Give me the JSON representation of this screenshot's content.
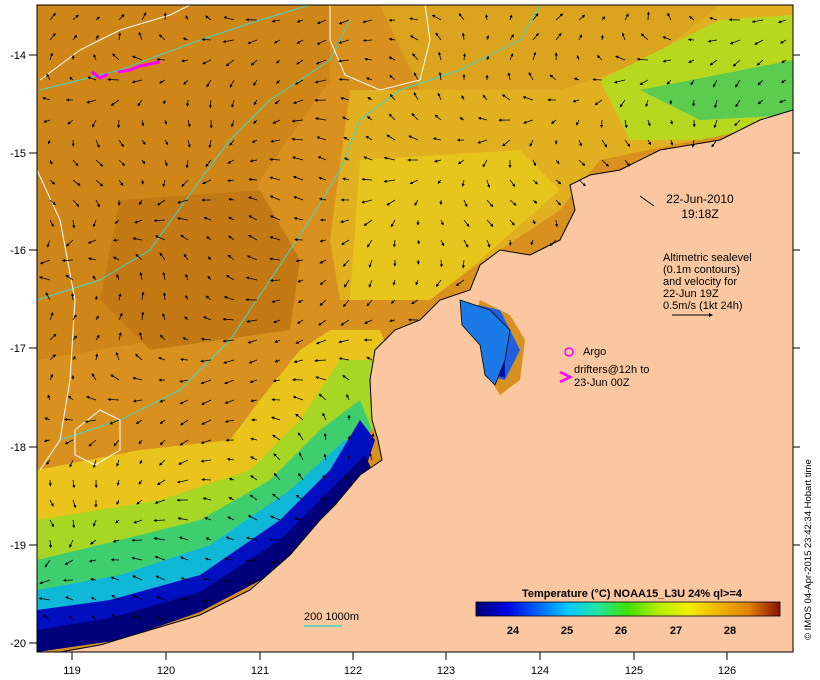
{
  "map": {
    "x_ticks": [
      "119",
      "120",
      "121",
      "122",
      "123",
      "124",
      "125",
      "126"
    ],
    "y_ticks": [
      "-14",
      "-15",
      "-16",
      "-17",
      "-18",
      "-19",
      "-20"
    ],
    "date": "22-Jun-2010",
    "time": "19:18Z",
    "legend": {
      "line1": "Altimetric sealevel",
      "line2": "(0.1m contours)",
      "line3": "and velocity for",
      "line4": "22-Jun 19Z",
      "line5": "0.5m/s (1kt 24h)"
    },
    "argo_label": "Argo",
    "drifters_line1": "drifters@12h to",
    "drifters_line2": "23-Jun 00Z",
    "depth_label": "200  1000m",
    "colorbar": {
      "title": "Temperature (°C) NOAA15_L3U 24% ql>=4",
      "ticks": [
        "24",
        "25",
        "26",
        "27",
        "28"
      ],
      "colors": [
        "#00007a",
        "#0000e0",
        "#0060ff",
        "#00c8ff",
        "#20e6a0",
        "#40e000",
        "#b4ee00",
        "#f0ee00",
        "#f0b400",
        "#e08000",
        "#c05000",
        "#8a1000"
      ]
    },
    "credit": "© IMOS 04-Apr-2015 23:42:34 Hobart time",
    "colors": {
      "land": "#fbc7a0",
      "warm": "#d88e1c",
      "mid": "#e6c21a",
      "green": "#9ad928",
      "cold": "#00007a",
      "contour": "#40d6c4"
    }
  }
}
